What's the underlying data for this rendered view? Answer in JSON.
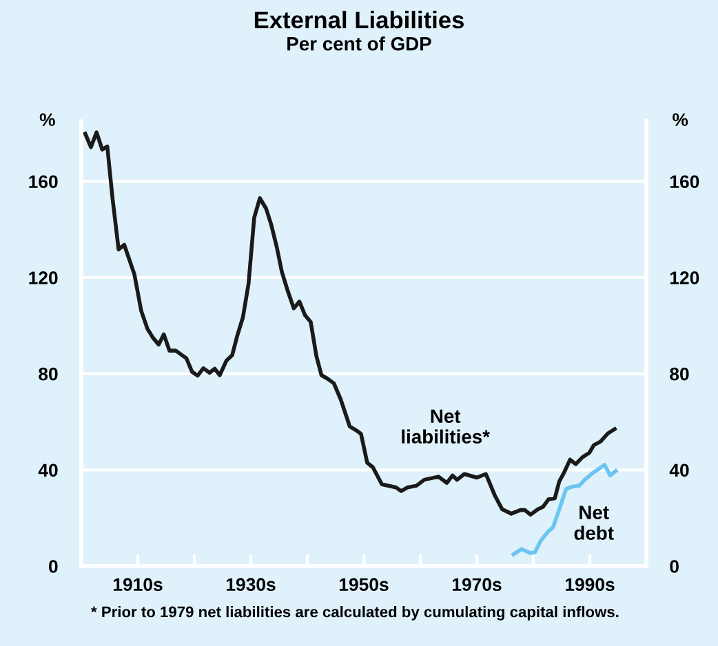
{
  "chart_data": {
    "type": "line",
    "title": "External Liabilities",
    "subtitle": "Per cent of GDP",
    "ylabel": "%",
    "y2label": "%",
    "xlim": [
      1900,
      2000
    ],
    "xticks": [
      {
        "value": 1910,
        "label": "1910s"
      },
      {
        "value": 1920,
        "label": null
      },
      {
        "value": 1930,
        "label": "1930s"
      },
      {
        "value": 1940,
        "label": null
      },
      {
        "value": 1950,
        "label": "1950s"
      },
      {
        "value": 1960,
        "label": null
      },
      {
        "value": 1970,
        "label": "1970s"
      },
      {
        "value": 1980,
        "label": null
      },
      {
        "value": 1990,
        "label": "1990s"
      }
    ],
    "ylim": [
      0,
      185
    ],
    "yticks": [
      0,
      40,
      80,
      120,
      160
    ],
    "y2lim": [
      0,
      185
    ],
    "y2ticks": [
      0,
      40,
      80,
      120,
      160
    ],
    "grid": "y",
    "legend": false,
    "series": [
      {
        "name": "Net liabilities*",
        "color": "#1a1a1a",
        "x": [
          1900.7,
          1901.7,
          1902.7,
          1903.7,
          1904.6,
          1905.5,
          1906.6,
          1907.6,
          1909.4,
          1910.6,
          1911.7,
          1912.7,
          1913.7,
          1914.6,
          1915.6,
          1916.7,
          1918.6,
          1919.6,
          1920.6,
          1921.6,
          1922.7,
          1923.6,
          1924.5,
          1925.7,
          1926.7,
          1927.6,
          1928.6,
          1929.6,
          1930.6,
          1931.6,
          1932.7,
          1933.6,
          1934.6,
          1935.5,
          1936.5,
          1937.6,
          1938.6,
          1939.6,
          1940.6,
          1941.6,
          1942.5,
          1943.6,
          1944.7,
          1945.9,
          1947.5,
          1948.7,
          1949.5,
          1950.6,
          1951.6,
          1953.2,
          1955.7,
          1956.6,
          1957.7,
          1959.3,
          1960.7,
          1963.2,
          1964.7,
          1965.7,
          1966.5,
          1967.8,
          1970.0,
          1971.6,
          1973.2,
          1974.5,
          1976.1,
          1977.7,
          1978.5,
          1979.5,
          1980.8,
          1981.7,
          1982.7,
          1983.8,
          1984.6,
          1985.4,
          1986.5,
          1987.5,
          1988.7,
          1989.9,
          1990.7,
          1991.9,
          1993.2,
          1994.4
        ],
        "values": [
          179.8,
          174.2,
          180.4,
          173.2,
          174.5,
          153.4,
          131.7,
          133.6,
          121.3,
          106.2,
          98.7,
          94.9,
          92.1,
          96.4,
          89.6,
          89.6,
          86.4,
          80.8,
          79.2,
          82.3,
          80.4,
          82.1,
          79.4,
          85.5,
          87.7,
          95.8,
          103.4,
          117.5,
          144.9,
          153.0,
          148.7,
          142.1,
          132.6,
          122.3,
          114.7,
          107.2,
          110.0,
          104.3,
          101.5,
          87.4,
          79.4,
          77.9,
          76.0,
          69.4,
          58.1,
          56.4,
          55.0,
          43.0,
          41.1,
          34.0,
          32.7,
          31.2,
          32.7,
          33.4,
          35.9,
          37.2,
          34.6,
          37.7,
          35.9,
          38.3,
          36.8,
          38.3,
          29.3,
          23.6,
          21.8,
          23.3,
          23.3,
          21.4,
          23.6,
          24.6,
          27.8,
          28.2,
          35.3,
          38.7,
          44.3,
          42.4,
          45.3,
          47.1,
          50.3,
          51.8,
          55.2,
          57.0
        ]
      },
      {
        "name": "Net debt",
        "color": "#6cc5f0",
        "x": [
          1976.5,
          1977.9,
          1979.5,
          1980.3,
          1981.3,
          1982.6,
          1983.5,
          1984.6,
          1985.8,
          1987.0,
          1988.1,
          1989.1,
          1990.5,
          1991.7,
          1992.6,
          1993.6,
          1994.6
        ],
        "values": [
          4.9,
          7.1,
          5.4,
          5.8,
          10.5,
          14.3,
          16.2,
          23.7,
          32.1,
          33.1,
          33.4,
          35.9,
          38.7,
          40.6,
          42.1,
          37.7,
          39.6
        ]
      }
    ],
    "annotations": [
      "* Prior to 1979 net liabilities are calculated by cumulating capital inflows."
    ]
  }
}
